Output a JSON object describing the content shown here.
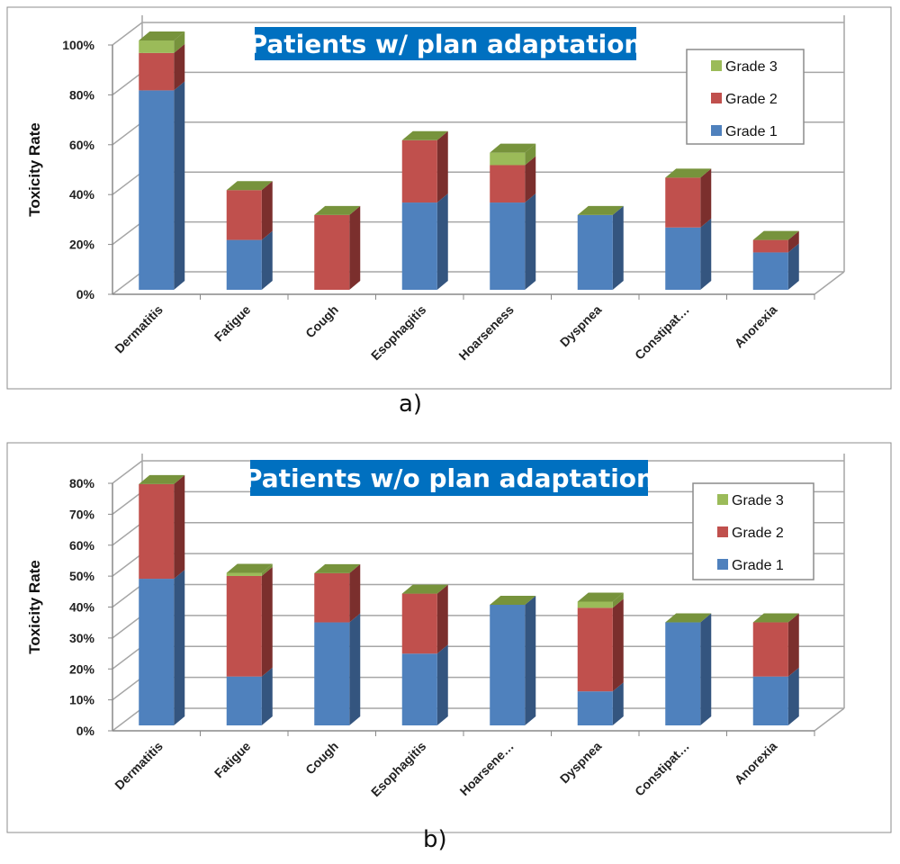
{
  "colors": {
    "grade1": "#4F81BD",
    "grade1_side": "#34557F",
    "grade2": "#C0504D",
    "grade2_side": "#7B2F2D",
    "grade3": "#9BBB59",
    "top_cap": "#77933C",
    "title_bg": "#0070C0"
  },
  "chart_data": [
    {
      "type": "bar",
      "stacked": true,
      "title": "Patients w/ plan adaptation",
      "ylabel": "Toxicity Rate",
      "xlabel": "",
      "ylim": [
        0,
        100
      ],
      "yticks": [
        0,
        20,
        40,
        60,
        80,
        100
      ],
      "ytick_labels": [
        "0%",
        "20%",
        "40%",
        "60%",
        "80%",
        "100%"
      ],
      "categories": [
        "Dermatitis",
        "Fatigue",
        "Cough",
        "Esophagitis",
        "Hoarseness",
        "Dyspnea",
        "Constipat…",
        "Anorexia"
      ],
      "series": [
        {
          "name": "Grade 1",
          "values": [
            80,
            20,
            0,
            35,
            35,
            30,
            25,
            15
          ]
        },
        {
          "name": "Grade 2",
          "values": [
            15,
            20,
            30,
            25,
            15,
            0,
            20,
            5
          ]
        },
        {
          "name": "Grade 3",
          "values": [
            5,
            0,
            0,
            0,
            5,
            0,
            0,
            0
          ]
        }
      ],
      "legend": [
        "Grade 3",
        "Grade 2",
        "Grade 1"
      ],
      "legend_position": "top-right",
      "grid": true,
      "caption": "a)"
    },
    {
      "type": "bar",
      "stacked": true,
      "title": "Patients w/o plan adaptation",
      "ylabel": "Toxicity Rate",
      "xlabel": "",
      "ylim": [
        0,
        80
      ],
      "yticks": [
        0,
        10,
        20,
        30,
        40,
        50,
        60,
        70,
        80
      ],
      "ytick_labels": [
        "0%",
        "10%",
        "20%",
        "30%",
        "40%",
        "50%",
        "60%",
        "70%",
        "80%"
      ],
      "categories": [
        "Dermatitis",
        "Fatigue",
        "Cough",
        "Esophagitis",
        "Hoarsene…",
        "Dyspnea",
        "Constipat…",
        "Anorexia"
      ],
      "series": [
        {
          "name": "Grade 1",
          "values": [
            47.4,
            15.8,
            33.3,
            23.2,
            39,
            11,
            33.3,
            15.8
          ]
        },
        {
          "name": "Grade 2",
          "values": [
            30.6,
            32.5,
            15.9,
            19.4,
            0,
            27,
            0,
            17.5
          ]
        },
        {
          "name": "Grade 3",
          "values": [
            0,
            1,
            0,
            0,
            0,
            2,
            0,
            0
          ]
        }
      ],
      "legend": [
        "Grade 3",
        "Grade 2",
        "Grade 1"
      ],
      "legend_position": "top-right",
      "grid": true,
      "caption": "b)"
    }
  ]
}
